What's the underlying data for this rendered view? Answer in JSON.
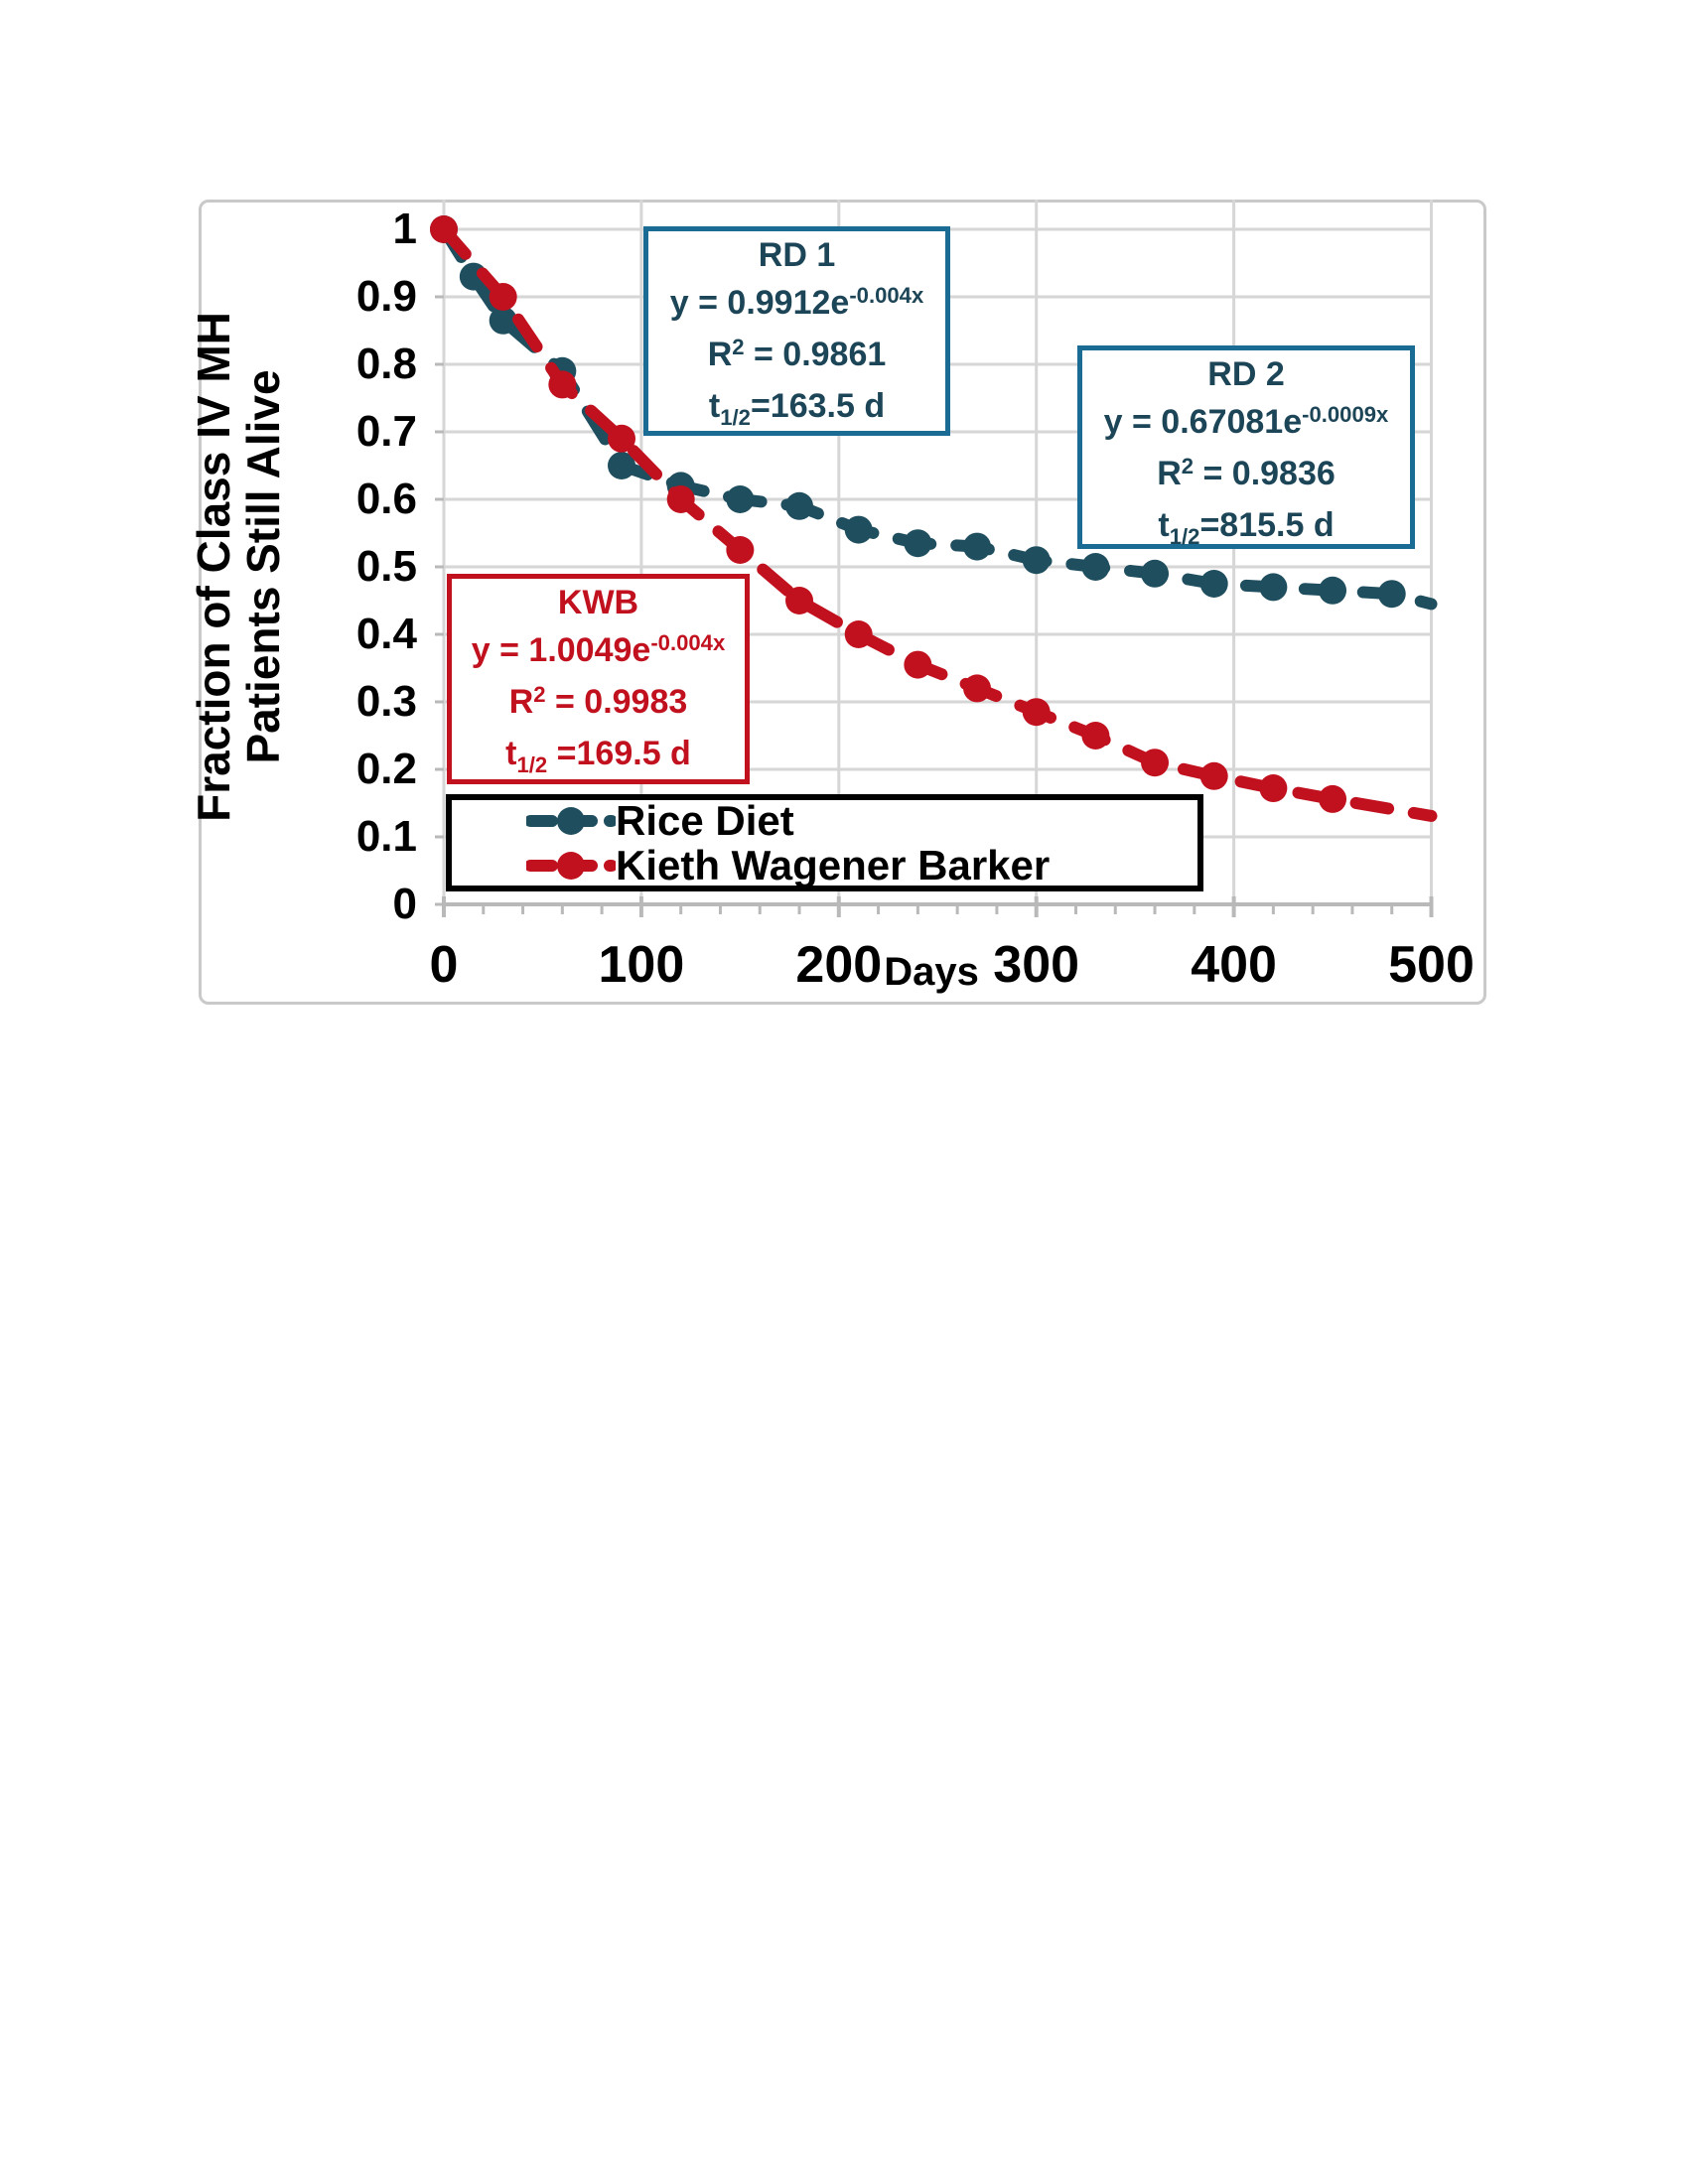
{
  "page_background": "#ffffff",
  "colors": {
    "rice_diet_series": "#1F4E5F",
    "kwb_series": "#C1111E",
    "rd_box_border": "#1A6C94",
    "rd_box_text": "#1C4557",
    "kwb_box_border": "#C1111E",
    "kwb_box_text": "#C1111E",
    "gridline": "#d6d6d6",
    "axis_line": "#b9b9b9",
    "frame_border": "#c9c9c9",
    "legend_border": "#000000",
    "tick_text": "#000000"
  },
  "chart_data": {
    "type": "scatter",
    "title": "",
    "xlabel": "Days",
    "ylabel_line1": "Fraction of Class IV MH",
    "ylabel_line2": "Patients Still Alive",
    "xlim": [
      0,
      500
    ],
    "ylim": [
      0,
      1.04
    ],
    "grid": "on",
    "legend_position": "bottom-left-inside",
    "x_major_ticks": [
      0,
      100,
      200,
      300,
      400,
      500
    ],
    "x_minor_step": 20,
    "y_ticks": [
      {
        "label": "1",
        "value": 1.0
      },
      {
        "label": "0.9",
        "value": 0.9
      },
      {
        "label": "0.8",
        "value": 0.8
      },
      {
        "label": "0.7",
        "value": 0.7
      },
      {
        "label": "0.6",
        "value": 0.6
      },
      {
        "label": "0.5",
        "value": 0.5
      },
      {
        "label": "0.4",
        "value": 0.4
      },
      {
        "label": "0.3",
        "value": 0.3
      },
      {
        "label": "0.2",
        "value": 0.2
      },
      {
        "label": "0.1",
        "value": 0.1
      },
      {
        "label": "0",
        "value": 0.0
      }
    ],
    "series": [
      {
        "name": "Rice Diet",
        "color": "#1F4E5F",
        "x": [
          0,
          15,
          30,
          60,
          90,
          120,
          150,
          180,
          210,
          240,
          270,
          300,
          330,
          360,
          390,
          420,
          450,
          480
        ],
        "y": [
          1.0,
          0.93,
          0.865,
          0.79,
          0.65,
          0.62,
          0.6,
          0.59,
          0.555,
          0.535,
          0.53,
          0.51,
          0.5,
          0.49,
          0.475,
          0.47,
          0.465,
          0.46
        ],
        "tail": {
          "x": 500,
          "y": 0.445
        }
      },
      {
        "name": "Kieth Wagener Barker",
        "color": "#C1111E",
        "x": [
          0,
          30,
          60,
          90,
          120,
          150,
          180,
          210,
          240,
          270,
          300,
          330,
          360,
          390,
          420,
          450
        ],
        "y": [
          1.0,
          0.9,
          0.77,
          0.69,
          0.6,
          0.525,
          0.45,
          0.4,
          0.355,
          0.32,
          0.285,
          0.25,
          0.21,
          0.19,
          0.172,
          0.156
        ],
        "tail": {
          "x": 500,
          "y": 0.131
        }
      }
    ],
    "annotations": [
      {
        "id": "rd1",
        "border": "#1A6C94",
        "text_color": "#1C4557",
        "lines": [
          [
            {
              "t": "RD 1"
            }
          ],
          [
            {
              "t": "y = 0.9912e"
            },
            {
              "t": "-0.004x",
              "pos": "sup"
            }
          ],
          [
            {
              "t": "R"
            },
            {
              "t": "2",
              "pos": "sup"
            },
            {
              "t": " = 0.9861"
            }
          ],
          [
            {
              "t": "t"
            },
            {
              "t": "1/2",
              "pos": "sub"
            },
            {
              "t": "=163.5 d"
            }
          ]
        ]
      },
      {
        "id": "rd2",
        "border": "#1A6C94",
        "text_color": "#1C4557",
        "lines": [
          [
            {
              "t": "RD 2"
            }
          ],
          [
            {
              "t": "y = 0.67081e"
            },
            {
              "t": "-0.0009x",
              "pos": "sup"
            }
          ],
          [
            {
              "t": "R"
            },
            {
              "t": "2",
              "pos": "sup"
            },
            {
              "t": " = 0.9836"
            }
          ],
          [
            {
              "t": "t"
            },
            {
              "t": "1/2",
              "pos": "sub"
            },
            {
              "t": "=815.5 d"
            }
          ]
        ]
      },
      {
        "id": "kwb",
        "border": "#C1111E",
        "text_color": "#C1111E",
        "lines": [
          [
            {
              "t": "KWB"
            }
          ],
          [
            {
              "t": "y = 1.0049e"
            },
            {
              "t": "-0.004x",
              "pos": "sup"
            }
          ],
          [
            {
              "t": "R"
            },
            {
              "t": "2",
              "pos": "sup"
            },
            {
              "t": " = 0.9983"
            }
          ],
          [
            {
              "t": "t"
            },
            {
              "t": "1/2",
              "pos": "sub"
            },
            {
              "t": " =169.5 d"
            }
          ]
        ]
      }
    ],
    "legend_entries": [
      {
        "label": "Rice Diet",
        "color": "#1F4E5F"
      },
      {
        "label": "Kieth Wagener Barker",
        "color": "#C1111E"
      }
    ]
  }
}
